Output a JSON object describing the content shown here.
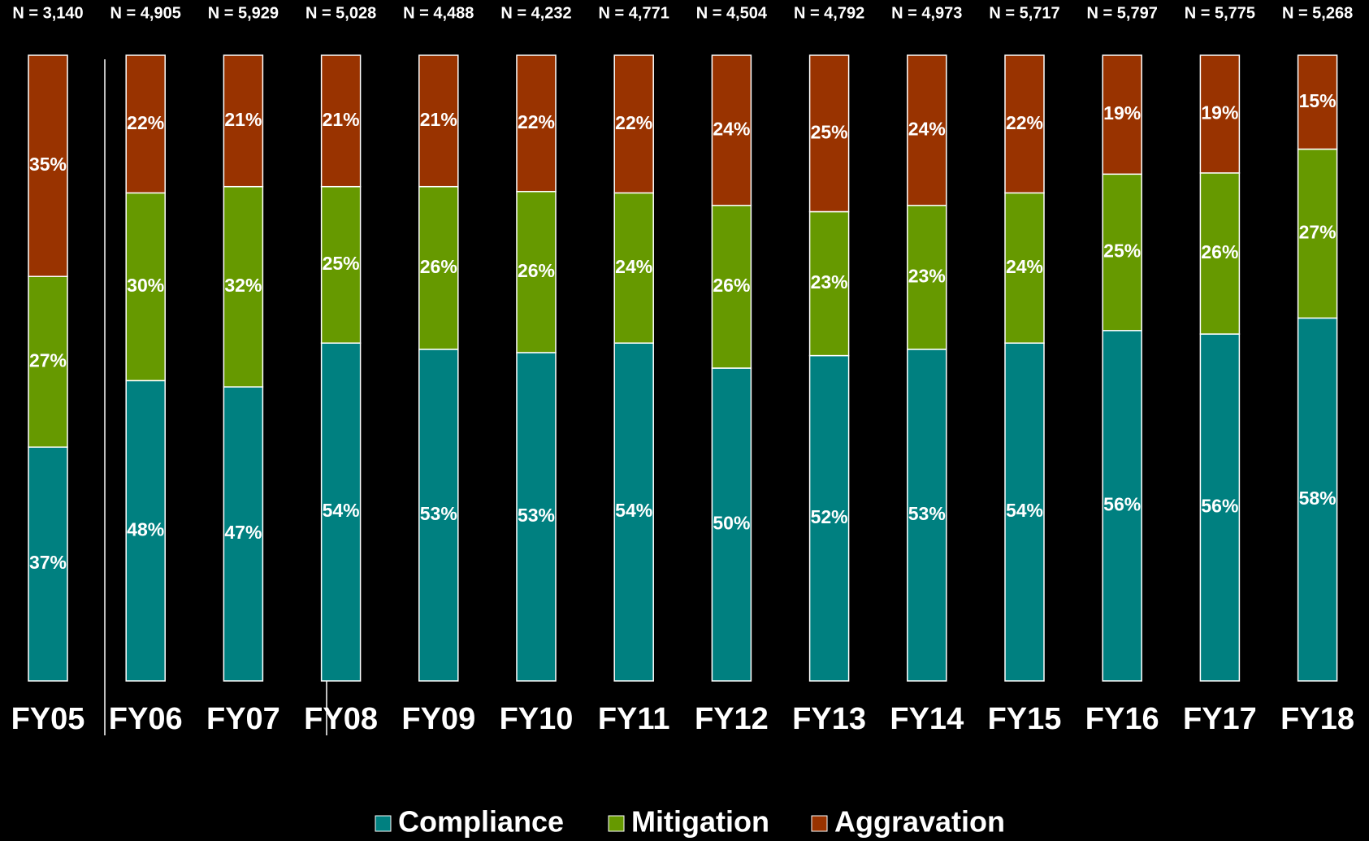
{
  "chart_data": {
    "type": "stacked_bar",
    "categories": [
      "FY05",
      "FY06",
      "FY07",
      "FY08",
      "FY09",
      "FY10",
      "FY11",
      "FY12",
      "FY13",
      "FY14",
      "FY15",
      "FY16",
      "FY17",
      "FY18"
    ],
    "n_labels": [
      "N = 3,140",
      "N = 4,905",
      "N = 5,929",
      "N = 5,028",
      "N = 4,488",
      "N = 4,232",
      "N = 4,771",
      "N = 4,504",
      "N = 4,792",
      "N = 4,973",
      "N = 5,717",
      "N = 5,797",
      "N = 5,775",
      "N = 5,268"
    ],
    "series": [
      {
        "name": "Compliance",
        "color": "#008080",
        "values": [
          37,
          48,
          47,
          54,
          53,
          53,
          54,
          50,
          52,
          53,
          54,
          56,
          56,
          58
        ],
        "value_labels": [
          "37%",
          "48%",
          "47%",
          "54%",
          "53%",
          "53%",
          "54%",
          "50%",
          "52%",
          "53%",
          "54%",
          "56%",
          "56%",
          "58%"
        ]
      },
      {
        "name": "Mitigation",
        "color": "#669900",
        "values": [
          27,
          30,
          32,
          25,
          26,
          26,
          24,
          26,
          23,
          23,
          24,
          25,
          26,
          27
        ],
        "value_labels": [
          "27%",
          "30%",
          "32%",
          "25%",
          "26%",
          "26%",
          "24%",
          "26%",
          "23%",
          "23%",
          "24%",
          "25%",
          "26%",
          "27%"
        ]
      },
      {
        "name": "Aggravation",
        "color": "#993300",
        "values": [
          35,
          22,
          21,
          21,
          21,
          22,
          22,
          24,
          25,
          24,
          22,
          19,
          19,
          15
        ],
        "value_labels": [
          "35%",
          "22%",
          "21%",
          "21%",
          "21%",
          "22%",
          "22%",
          "24%",
          "25%",
          "24%",
          "22%",
          "19%",
          "19%",
          "15%"
        ]
      }
    ],
    "legend": "bottom"
  }
}
